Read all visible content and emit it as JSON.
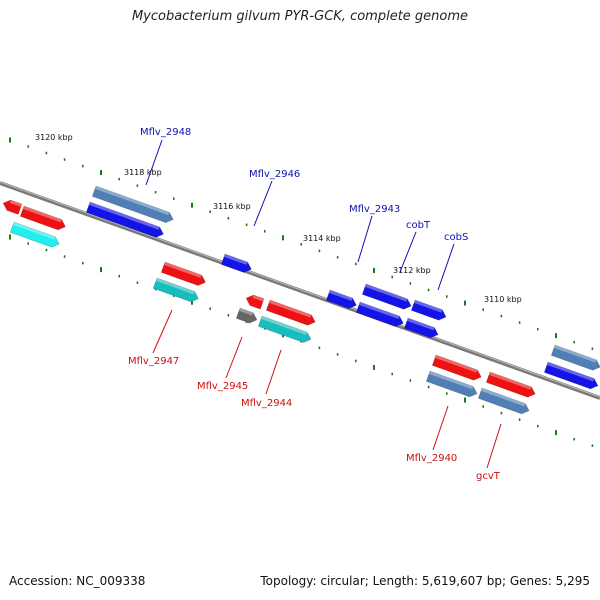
{
  "title": "Mycobacterium gilvum PYR-GCK, complete genome",
  "footer": {
    "accession": "Accession: NC_009338",
    "stats": "Topology: circular; Length: 5,619,607 bp; Genes: 5,295"
  },
  "colors": {
    "backbone": "#7a7a7a",
    "tick": "#1a7a1a",
    "fwd_label": "#1010b0",
    "rev_label": "#cc1010",
    "blue": "#1414e6",
    "steel": "#4f7fb5",
    "red": "#ee1111",
    "teal": "#19bdbd",
    "cyan": "#22eeee",
    "grey": "#666666"
  },
  "scale": [
    {
      "label": "3120 kbp",
      "kbp": 3120
    },
    {
      "label": "3118 kbp",
      "kbp": 3118
    },
    {
      "label": "3116 kbp",
      "kbp": 3116
    },
    {
      "label": "3114 kbp",
      "kbp": 3114
    },
    {
      "label": "3112 kbp",
      "kbp": 3112
    },
    {
      "label": "3110 kbp",
      "kbp": 3110
    }
  ],
  "genes": [
    {
      "label": "Mflv_2948",
      "strand": "fwd"
    },
    {
      "label": "Mflv_2946",
      "strand": "fwd"
    },
    {
      "label": "Mflv_2943",
      "strand": "fwd"
    },
    {
      "label": "cobT",
      "strand": "fwd"
    },
    {
      "label": "cobS",
      "strand": "fwd"
    },
    {
      "label": "Mflv_2947",
      "strand": "rev"
    },
    {
      "label": "Mflv_2945",
      "strand": "rev"
    },
    {
      "label": "Mflv_2944",
      "strand": "rev"
    },
    {
      "label": "Mflv_2940",
      "strand": "rev"
    },
    {
      "label": "gcvT",
      "strand": "rev"
    }
  ]
}
